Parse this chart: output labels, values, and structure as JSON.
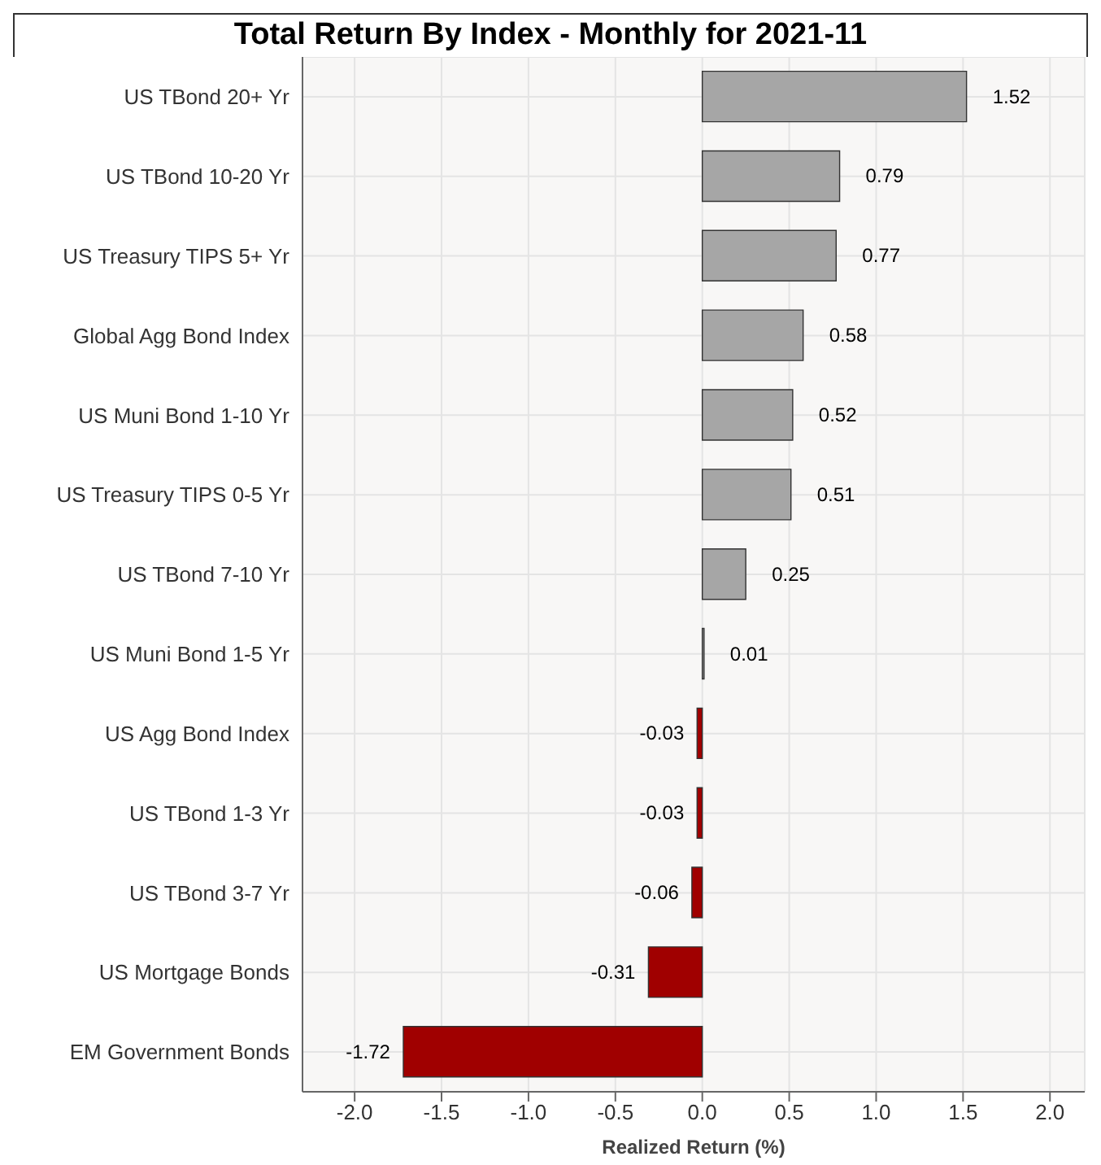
{
  "chart_data": {
    "type": "bar",
    "orientation": "horizontal",
    "title": "Total Return By Index - Monthly for 2021-11",
    "xlabel": "Realized Return (%)",
    "categories": [
      "US TBond 20+ Yr",
      "US TBond 10-20 Yr",
      "US Treasury TIPS 5+ Yr",
      "Global Agg Bond Index",
      "US Muni Bond 1-10 Yr",
      "US Treasury TIPS 0-5 Yr",
      "US TBond 7-10 Yr",
      "US Muni Bond 1-5 Yr",
      "US Agg Bond Index",
      "US TBond 1-3 Yr",
      "US TBond 3-7 Yr",
      "US Mortgage Bonds",
      "EM Government Bonds"
    ],
    "values": [
      1.52,
      0.79,
      0.77,
      0.58,
      0.52,
      0.51,
      0.25,
      0.01,
      -0.03,
      -0.03,
      -0.06,
      -0.31,
      -1.72
    ],
    "colors": [
      "#a6a6a6",
      "#a6a6a6",
      "#a6a6a6",
      "#a6a6a6",
      "#a6a6a6",
      "#a6a6a6",
      "#a6a6a6",
      "#a6a6a6",
      "#a00000",
      "#a00000",
      "#a00000",
      "#a00000",
      "#a00000"
    ],
    "xlim": [
      -2.3,
      2.2
    ],
    "xticks": [
      {
        "value": -2,
        "label": "-2.0"
      },
      {
        "value": -1.5,
        "label": "-1.5"
      },
      {
        "value": -1,
        "label": "-1.0"
      },
      {
        "value": -0.5,
        "label": "-0.5"
      },
      {
        "value": 0,
        "label": "0.0"
      },
      {
        "value": 0.5,
        "label": "0.5"
      },
      {
        "value": 1,
        "label": "1.0"
      },
      {
        "value": 1.5,
        "label": "1.5"
      },
      {
        "value": 2,
        "label": "2.0"
      }
    ],
    "data_labels": true,
    "grid": true,
    "legend": false
  }
}
